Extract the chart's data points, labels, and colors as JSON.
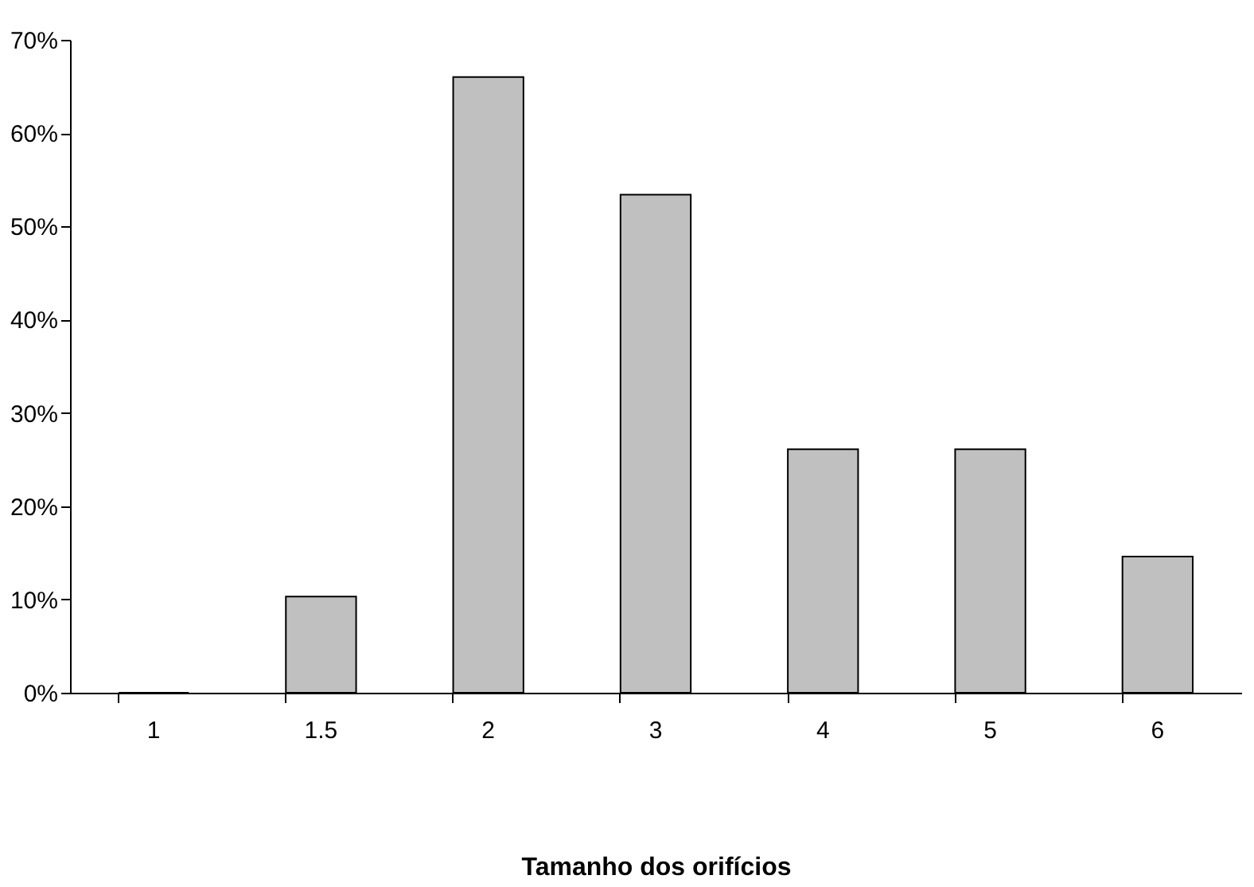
{
  "chart_data": {
    "type": "bar",
    "xlabel": "Tamanho dos orifícios",
    "categories": [
      "1",
      "1.5",
      "2",
      "3",
      "4",
      "5",
      "6"
    ],
    "values": [
      0,
      10.3,
      66,
      53.4,
      26.1,
      26.1,
      14.6
    ],
    "color": "#c0c0c0",
    "ylim": [
      0,
      70
    ],
    "yticks": [
      {
        "value": 0,
        "label": "0%"
      },
      {
        "value": 10,
        "label": "10%"
      },
      {
        "value": 20,
        "label": "20%"
      },
      {
        "value": 30,
        "label": "30%"
      },
      {
        "value": 40,
        "label": "40%"
      },
      {
        "value": 50,
        "label": "50%"
      },
      {
        "value": 60,
        "label": "60%"
      },
      {
        "value": 70,
        "label": "70%"
      }
    ],
    "grid": false
  }
}
